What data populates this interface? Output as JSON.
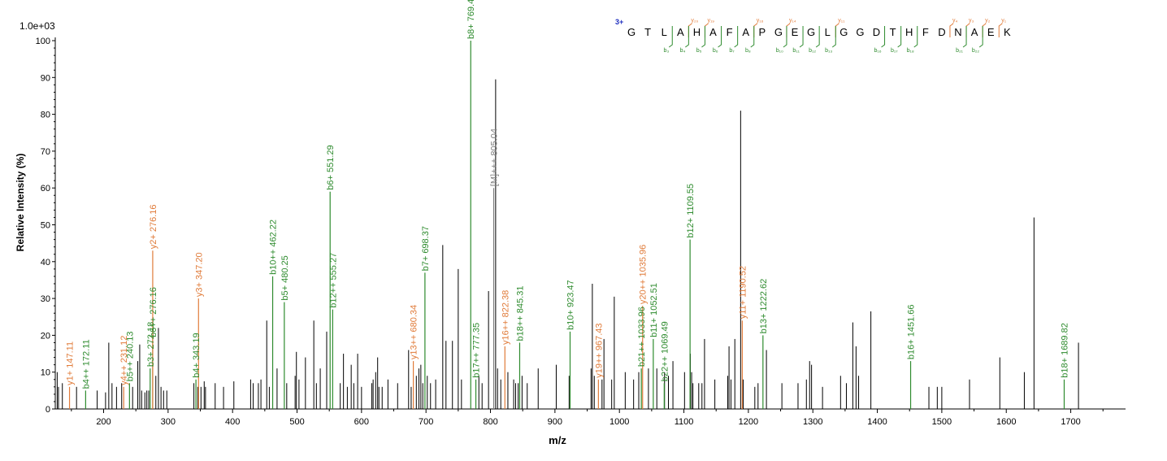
{
  "chart_data": {
    "type": "bar",
    "scale_label": "1.0e+03",
    "charge_label": "3+",
    "xlabel": "m/z",
    "ylabel": "Relative   Intensity (%)",
    "xlim": [
      125,
      1785
    ],
    "ylim": [
      0,
      100
    ],
    "x_ticks": [
      200,
      300,
      400,
      500,
      600,
      700,
      800,
      900,
      1000,
      1100,
      1200,
      1300,
      1400,
      1500,
      1600,
      1700
    ],
    "y_ticks": [
      0,
      10,
      20,
      30,
      40,
      50,
      60,
      70,
      80,
      90,
      100
    ],
    "colors": {
      "b_ion": "#2e8b2e",
      "y_ion": "#e07b39",
      "precursor": "#7f7f7f",
      "unassigned": "#000000",
      "axis": "#000000",
      "charge": "#1f2fbf"
    },
    "sequence": [
      "G",
      "T",
      "L",
      "A",
      "H",
      "A",
      "F",
      "A",
      "P",
      "G",
      "E",
      "G",
      "L",
      "G",
      "G",
      "D",
      "T",
      "H",
      "F",
      "D",
      "N",
      "A",
      "E",
      "K"
    ],
    "y_ion_marks": [
      {
        "label": "y₂₀",
        "after": 4
      },
      {
        "label": "y₁₉",
        "after": 5
      },
      {
        "label": "y₁₆",
        "after": 8
      },
      {
        "label": "y₁₄",
        "after": 10
      },
      {
        "label": "y₁₁",
        "after": 13
      },
      {
        "label": "y₄",
        "after": 20
      },
      {
        "label": "y₃",
        "after": 21
      },
      {
        "label": "y₂",
        "after": 22
      },
      {
        "label": "y₁",
        "after": 23
      }
    ],
    "b_ion_marks": [
      {
        "label": "b₃",
        "after": 3
      },
      {
        "label": "b₄",
        "after": 4
      },
      {
        "label": "b₅",
        "after": 5
      },
      {
        "label": "b₆",
        "after": 6
      },
      {
        "label": "b₇",
        "after": 7
      },
      {
        "label": "b₈",
        "after": 8
      },
      {
        "label": "b₁₀",
        "after": 10
      },
      {
        "label": "b₁₁",
        "after": 11
      },
      {
        "label": "b₁₂",
        "after": 12
      },
      {
        "label": "b₁₃",
        "after": 13
      },
      {
        "label": "b₁₆",
        "after": 16
      },
      {
        "label": "b₁₇",
        "after": 17
      },
      {
        "label": "b₁₈",
        "after": 18
      },
      {
        "label": "b₂₁",
        "after": 21
      },
      {
        "label": "b₂₂",
        "after": 22
      }
    ],
    "annotated_peaks": [
      {
        "mz": 147.11,
        "intensity": 6,
        "label": "y1+ 147.11",
        "kind": "y"
      },
      {
        "mz": 172.11,
        "intensity": 5,
        "label": "b4++ 172.11",
        "kind": "b"
      },
      {
        "mz": 231.12,
        "intensity": 6,
        "label": "y4++ 231.12",
        "kind": "y"
      },
      {
        "mz": 240.13,
        "intensity": 7,
        "label": "b5++ 240.13",
        "kind": "b"
      },
      {
        "mz": 272.18,
        "intensity": 11,
        "label": "b3+ 272.18",
        "kind": "b"
      },
      {
        "mz": 276.16,
        "intensity": 19,
        "label": "b6++ 276.16",
        "kind": "b"
      },
      {
        "mz": 276.16,
        "intensity": 43,
        "label": "y2+ 276.16",
        "kind": "y"
      },
      {
        "mz": 343.19,
        "intensity": 8,
        "label": "b4+ 343.19",
        "kind": "b"
      },
      {
        "mz": 347.2,
        "intensity": 30,
        "label": "y3+ 347.20",
        "kind": "y"
      },
      {
        "mz": 462.22,
        "intensity": 36,
        "label": "b10++ 462.22",
        "kind": "b"
      },
      {
        "mz": 480.25,
        "intensity": 29,
        "label": "b5+ 480.25",
        "kind": "b"
      },
      {
        "mz": 551.29,
        "intensity": 59,
        "label": "b6+ 551.29",
        "kind": "b"
      },
      {
        "mz": 555.27,
        "intensity": 27,
        "label": "b12++ 555.27",
        "kind": "b"
      },
      {
        "mz": 680.34,
        "intensity": 13,
        "label": "y13++ 680.34",
        "kind": "y"
      },
      {
        "mz": 698.37,
        "intensity": 37,
        "label": "b7+ 698.37",
        "kind": "b"
      },
      {
        "mz": 769.4,
        "intensity": 100,
        "label": "b8+ 769.40",
        "kind": "b"
      },
      {
        "mz": 777.35,
        "intensity": 8,
        "label": "b17++ 777.35",
        "kind": "b"
      },
      {
        "mz": 805.04,
        "intensity": 60,
        "label": "[M]+++ 805.04",
        "kind": "m"
      },
      {
        "mz": 822.38,
        "intensity": 17,
        "label": "y16++ 822.38",
        "kind": "y"
      },
      {
        "mz": 845.31,
        "intensity": 18,
        "label": "b18++ 845.31",
        "kind": "b"
      },
      {
        "mz": 923.47,
        "intensity": 21,
        "label": "b10+ 923.47",
        "kind": "b"
      },
      {
        "mz": 967.43,
        "intensity": 8,
        "label": "y19++ 967.43",
        "kind": "y"
      },
      {
        "mz": 1033.96,
        "intensity": 11,
        "label": "b21++ 1033.96",
        "kind": "b"
      },
      {
        "mz": 1035.96,
        "intensity": 28,
        "label": "y20++ 1035.96",
        "kind": "y"
      },
      {
        "mz": 1052.51,
        "intensity": 19,
        "label": "b11+ 1052.51",
        "kind": "b"
      },
      {
        "mz": 1069.49,
        "intensity": 7,
        "label": "b22++ 1069.49",
        "kind": "b"
      },
      {
        "mz": 1109.55,
        "intensity": 46,
        "label": "b12+ 1109.55",
        "kind": "b"
      },
      {
        "mz": 1190.52,
        "intensity": 24,
        "label": "y11+ 1190.52",
        "kind": "y"
      },
      {
        "mz": 1222.62,
        "intensity": 20,
        "label": "b13+ 1222.62",
        "kind": "b"
      },
      {
        "mz": 1451.66,
        "intensity": 13,
        "label": "b16+ 1451.66",
        "kind": "b"
      },
      {
        "mz": 1689.82,
        "intensity": 8,
        "label": "b18+ 1689.82",
        "kind": "b"
      }
    ],
    "unassigned_peaks": [
      [
        128,
        10
      ],
      [
        130,
        6
      ],
      [
        136,
        7
      ],
      [
        158,
        6
      ],
      [
        190,
        5
      ],
      [
        203,
        4.5
      ],
      [
        208,
        18
      ],
      [
        213,
        7
      ],
      [
        220,
        6
      ],
      [
        228,
        7
      ],
      [
        245,
        6
      ],
      [
        253,
        13
      ],
      [
        256,
        17.5
      ],
      [
        259,
        5
      ],
      [
        264,
        4.5
      ],
      [
        267,
        5
      ],
      [
        270,
        5
      ],
      [
        281,
        9
      ],
      [
        285,
        22
      ],
      [
        289,
        6
      ],
      [
        293,
        5
      ],
      [
        298,
        5
      ],
      [
        340,
        7
      ],
      [
        346,
        6
      ],
      [
        351,
        6
      ],
      [
        356,
        7.5
      ],
      [
        358,
        6
      ],
      [
        373,
        7
      ],
      [
        386,
        6
      ],
      [
        402,
        7.5
      ],
      [
        428,
        8
      ],
      [
        432,
        7
      ],
      [
        440,
        7
      ],
      [
        444,
        8
      ],
      [
        453,
        24
      ],
      [
        457,
        6
      ],
      [
        469,
        11
      ],
      [
        484,
        7
      ],
      [
        497,
        9
      ],
      [
        499,
        15.5
      ],
      [
        503,
        8
      ],
      [
        513,
        14
      ],
      [
        526,
        24
      ],
      [
        530,
        7
      ],
      [
        536,
        11
      ],
      [
        546,
        21
      ],
      [
        567,
        7
      ],
      [
        572,
        15
      ],
      [
        578,
        6
      ],
      [
        584,
        12
      ],
      [
        588,
        7
      ],
      [
        594,
        15
      ],
      [
        600,
        6
      ],
      [
        616,
        7
      ],
      [
        618,
        8
      ],
      [
        622,
        10
      ],
      [
        625,
        14
      ],
      [
        627,
        6
      ],
      [
        632,
        6
      ],
      [
        641,
        8
      ],
      [
        656,
        7
      ],
      [
        673,
        16
      ],
      [
        677,
        6
      ],
      [
        685,
        9
      ],
      [
        689,
        11
      ],
      [
        692,
        12
      ],
      [
        695,
        7
      ],
      [
        702,
        9
      ],
      [
        707,
        7
      ],
      [
        715,
        8
      ],
      [
        726,
        44.5
      ],
      [
        731,
        18.5
      ],
      [
        741,
        18.5
      ],
      [
        750,
        38
      ],
      [
        755,
        8
      ],
      [
        782,
        9
      ],
      [
        787,
        7
      ],
      [
        797,
        32
      ],
      [
        808,
        89.5
      ],
      [
        811,
        11
      ],
      [
        816,
        8
      ],
      [
        827,
        10
      ],
      [
        836,
        8
      ],
      [
        839,
        7
      ],
      [
        843,
        7
      ],
      [
        849,
        9
      ],
      [
        857,
        7
      ],
      [
        874,
        11
      ],
      [
        902,
        12
      ],
      [
        922,
        9
      ],
      [
        956,
        11
      ],
      [
        958,
        34
      ],
      [
        961,
        9
      ],
      [
        973,
        8
      ],
      [
        976,
        19
      ],
      [
        988,
        8
      ],
      [
        992,
        30.5
      ],
      [
        1009,
        10
      ],
      [
        1022,
        8
      ],
      [
        1030,
        10
      ],
      [
        1045,
        11
      ],
      [
        1058,
        11
      ],
      [
        1070,
        10
      ],
      [
        1076,
        9
      ],
      [
        1083,
        13
      ],
      [
        1101,
        10
      ],
      [
        1110,
        15
      ],
      [
        1112,
        10
      ],
      [
        1114,
        7
      ],
      [
        1123,
        7
      ],
      [
        1128,
        7
      ],
      [
        1132,
        19
      ],
      [
        1148,
        8
      ],
      [
        1168,
        9
      ],
      [
        1170,
        17
      ],
      [
        1173,
        8
      ],
      [
        1179,
        19
      ],
      [
        1188,
        81
      ],
      [
        1192,
        8
      ],
      [
        1210,
        6
      ],
      [
        1215,
        7
      ],
      [
        1228,
        16
      ],
      [
        1252,
        7
      ],
      [
        1277,
        7
      ],
      [
        1290,
        8
      ],
      [
        1295,
        13
      ],
      [
        1298,
        12
      ],
      [
        1315,
        6
      ],
      [
        1343,
        9
      ],
      [
        1352,
        7
      ],
      [
        1362,
        23.5
      ],
      [
        1367,
        17
      ],
      [
        1371,
        9
      ],
      [
        1390,
        26.5
      ],
      [
        1480,
        6
      ],
      [
        1493,
        6
      ],
      [
        1500,
        6
      ],
      [
        1543,
        8
      ],
      [
        1590,
        14
      ],
      [
        1628,
        10
      ],
      [
        1643,
        52
      ],
      [
        1712,
        18
      ]
    ]
  }
}
